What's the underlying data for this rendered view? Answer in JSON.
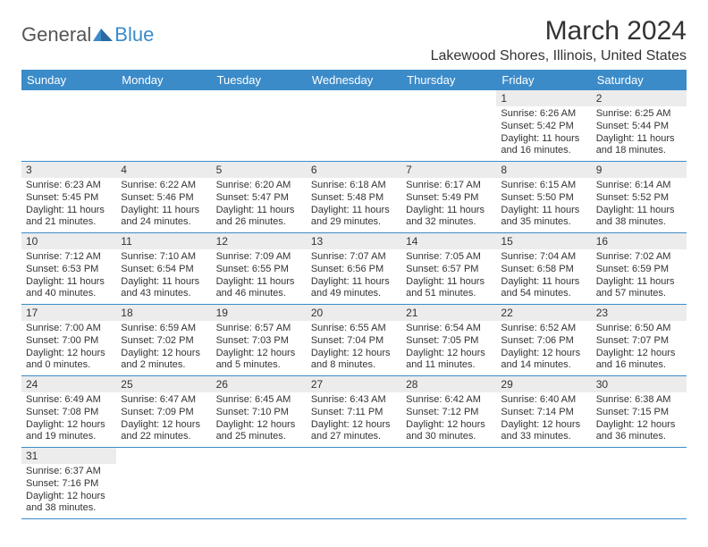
{
  "logo": {
    "text1": "General",
    "text2": "Blue",
    "text1_color": "#555555",
    "text2_color": "#3b8bc9"
  },
  "title": "March 2024",
  "location": "Lakewood Shores, Illinois, United States",
  "theme": {
    "header_bg": "#3b8bc9",
    "header_fg": "#ffffff",
    "daynum_bg": "#ececec",
    "border_color": "#3b8bc9",
    "page_bg": "#ffffff",
    "text_color": "#333333",
    "title_fontsize": 30,
    "location_fontsize": 16,
    "header_fontsize": 13,
    "daynum_fontsize": 12,
    "body_fontsize": 11
  },
  "weekdays": [
    "Sunday",
    "Monday",
    "Tuesday",
    "Wednesday",
    "Thursday",
    "Friday",
    "Saturday"
  ],
  "weeks": [
    [
      null,
      null,
      null,
      null,
      null,
      {
        "n": "1",
        "sunrise": "6:26 AM",
        "sunset": "5:42 PM",
        "dl_h": "11",
        "dl_m": "16"
      },
      {
        "n": "2",
        "sunrise": "6:25 AM",
        "sunset": "5:44 PM",
        "dl_h": "11",
        "dl_m": "18"
      }
    ],
    [
      {
        "n": "3",
        "sunrise": "6:23 AM",
        "sunset": "5:45 PM",
        "dl_h": "11",
        "dl_m": "21"
      },
      {
        "n": "4",
        "sunrise": "6:22 AM",
        "sunset": "5:46 PM",
        "dl_h": "11",
        "dl_m": "24"
      },
      {
        "n": "5",
        "sunrise": "6:20 AM",
        "sunset": "5:47 PM",
        "dl_h": "11",
        "dl_m": "26"
      },
      {
        "n": "6",
        "sunrise": "6:18 AM",
        "sunset": "5:48 PM",
        "dl_h": "11",
        "dl_m": "29"
      },
      {
        "n": "7",
        "sunrise": "6:17 AM",
        "sunset": "5:49 PM",
        "dl_h": "11",
        "dl_m": "32"
      },
      {
        "n": "8",
        "sunrise": "6:15 AM",
        "sunset": "5:50 PM",
        "dl_h": "11",
        "dl_m": "35"
      },
      {
        "n": "9",
        "sunrise": "6:14 AM",
        "sunset": "5:52 PM",
        "dl_h": "11",
        "dl_m": "38"
      }
    ],
    [
      {
        "n": "10",
        "sunrise": "7:12 AM",
        "sunset": "6:53 PM",
        "dl_h": "11",
        "dl_m": "40"
      },
      {
        "n": "11",
        "sunrise": "7:10 AM",
        "sunset": "6:54 PM",
        "dl_h": "11",
        "dl_m": "43"
      },
      {
        "n": "12",
        "sunrise": "7:09 AM",
        "sunset": "6:55 PM",
        "dl_h": "11",
        "dl_m": "46"
      },
      {
        "n": "13",
        "sunrise": "7:07 AM",
        "sunset": "6:56 PM",
        "dl_h": "11",
        "dl_m": "49"
      },
      {
        "n": "14",
        "sunrise": "7:05 AM",
        "sunset": "6:57 PM",
        "dl_h": "11",
        "dl_m": "51"
      },
      {
        "n": "15",
        "sunrise": "7:04 AM",
        "sunset": "6:58 PM",
        "dl_h": "11",
        "dl_m": "54"
      },
      {
        "n": "16",
        "sunrise": "7:02 AM",
        "sunset": "6:59 PM",
        "dl_h": "11",
        "dl_m": "57"
      }
    ],
    [
      {
        "n": "17",
        "sunrise": "7:00 AM",
        "sunset": "7:00 PM",
        "dl_h": "12",
        "dl_m": "0"
      },
      {
        "n": "18",
        "sunrise": "6:59 AM",
        "sunset": "7:02 PM",
        "dl_h": "12",
        "dl_m": "2"
      },
      {
        "n": "19",
        "sunrise": "6:57 AM",
        "sunset": "7:03 PM",
        "dl_h": "12",
        "dl_m": "5"
      },
      {
        "n": "20",
        "sunrise": "6:55 AM",
        "sunset": "7:04 PM",
        "dl_h": "12",
        "dl_m": "8"
      },
      {
        "n": "21",
        "sunrise": "6:54 AM",
        "sunset": "7:05 PM",
        "dl_h": "12",
        "dl_m": "11"
      },
      {
        "n": "22",
        "sunrise": "6:52 AM",
        "sunset": "7:06 PM",
        "dl_h": "12",
        "dl_m": "14"
      },
      {
        "n": "23",
        "sunrise": "6:50 AM",
        "sunset": "7:07 PM",
        "dl_h": "12",
        "dl_m": "16"
      }
    ],
    [
      {
        "n": "24",
        "sunrise": "6:49 AM",
        "sunset": "7:08 PM",
        "dl_h": "12",
        "dl_m": "19"
      },
      {
        "n": "25",
        "sunrise": "6:47 AM",
        "sunset": "7:09 PM",
        "dl_h": "12",
        "dl_m": "22"
      },
      {
        "n": "26",
        "sunrise": "6:45 AM",
        "sunset": "7:10 PM",
        "dl_h": "12",
        "dl_m": "25"
      },
      {
        "n": "27",
        "sunrise": "6:43 AM",
        "sunset": "7:11 PM",
        "dl_h": "12",
        "dl_m": "27"
      },
      {
        "n": "28",
        "sunrise": "6:42 AM",
        "sunset": "7:12 PM",
        "dl_h": "12",
        "dl_m": "30"
      },
      {
        "n": "29",
        "sunrise": "6:40 AM",
        "sunset": "7:14 PM",
        "dl_h": "12",
        "dl_m": "33"
      },
      {
        "n": "30",
        "sunrise": "6:38 AM",
        "sunset": "7:15 PM",
        "dl_h": "12",
        "dl_m": "36"
      }
    ],
    [
      {
        "n": "31",
        "sunrise": "6:37 AM",
        "sunset": "7:16 PM",
        "dl_h": "12",
        "dl_m": "38"
      },
      null,
      null,
      null,
      null,
      null,
      null
    ]
  ],
  "labels": {
    "sunrise_prefix": "Sunrise: ",
    "sunset_prefix": "Sunset: ",
    "daylight_prefix": "Daylight: ",
    "hours_word": " hours",
    "and_word": "and ",
    "minutes_word": " minutes."
  }
}
